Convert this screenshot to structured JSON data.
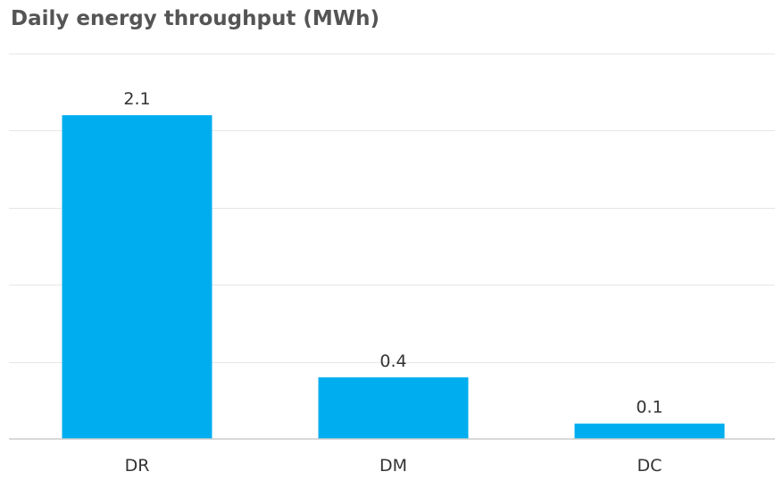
{
  "chart_data": {
    "type": "bar",
    "title": "Daily energy throughput (MWh)",
    "xlabel": "",
    "ylabel": "",
    "categories": [
      "DR",
      "DM",
      "DC"
    ],
    "values": [
      2.1,
      0.4,
      0.1
    ],
    "data_labels": [
      "2.1",
      "0.4",
      "0.1"
    ],
    "ylim": [
      0,
      2.5
    ],
    "grid": true,
    "legend": "none",
    "bar_color": "#00aeef"
  }
}
